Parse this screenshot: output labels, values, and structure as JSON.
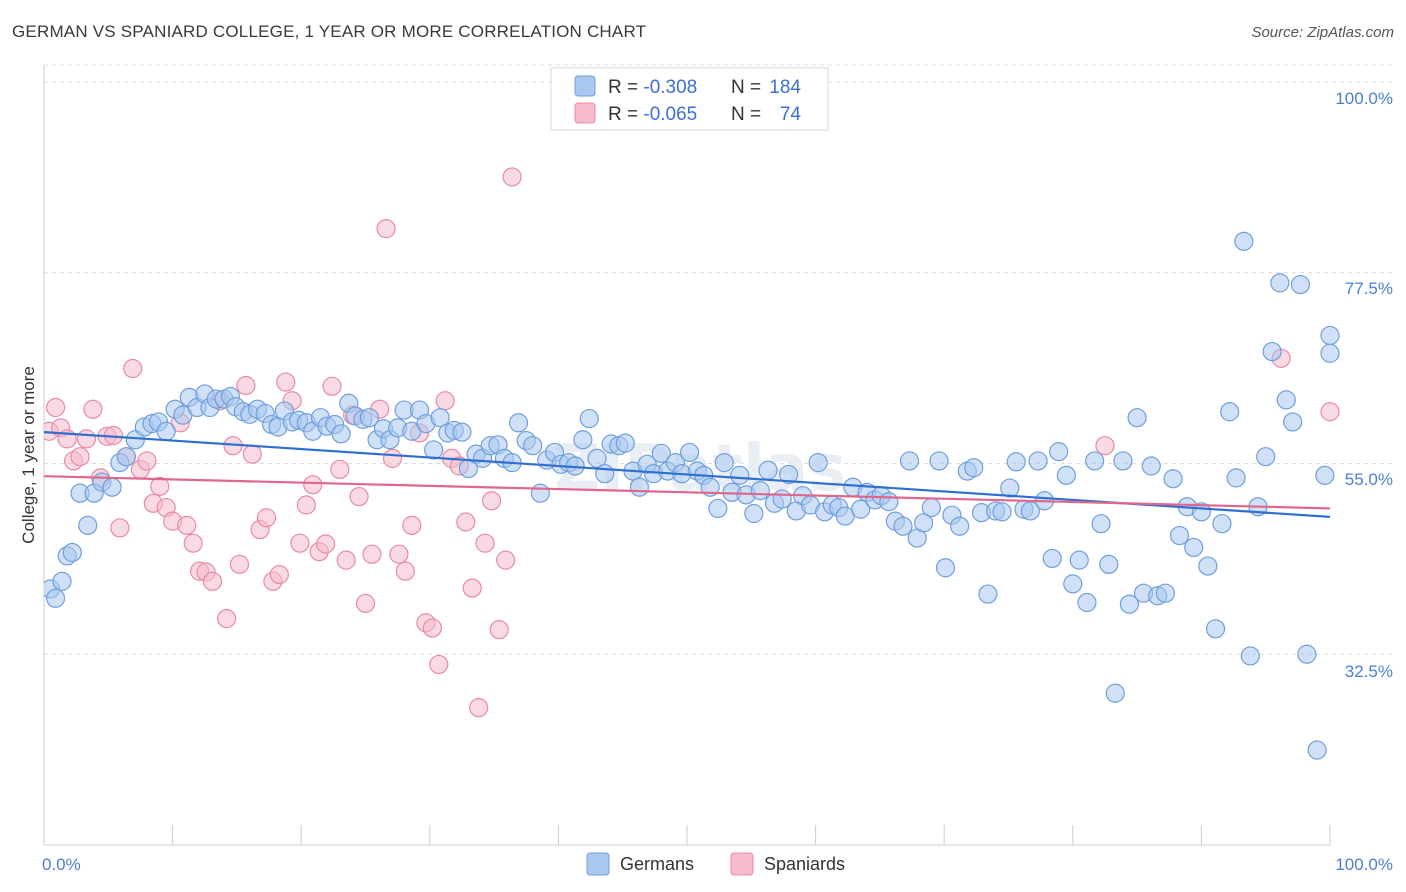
{
  "title": "GERMAN VS SPANIARD COLLEGE, 1 YEAR OR MORE CORRELATION CHART",
  "source": "Source: ZipAtlas.com",
  "colors": {
    "german_fill": "#a9c8f0",
    "german_stroke": "#6f9fdc",
    "german_line": "#2f6fcf",
    "spaniard_fill": "#f6bccb",
    "spaniard_stroke": "#e88aa5",
    "spaniard_line": "#e0668c",
    "tick_label": "#4a7fd0"
  },
  "legend": {
    "rows": [
      {
        "r_label": "R = ",
        "r_value": "-0.308",
        "n_label": "N = ",
        "n_value": "184"
      },
      {
        "r_label": "R = ",
        "r_value": "-0.065",
        "n_label": "N = ",
        "n_value": "74"
      }
    ]
  },
  "bottom_legend": [
    "Germans",
    "Spaniards"
  ],
  "chart_data": {
    "type": "scatter",
    "title": "GERMAN VS SPANIARD COLLEGE, 1 YEAR OR MORE CORRELATION CHART",
    "xlabel": "",
    "ylabel": "College, 1 year or more",
    "xlim": [
      0,
      100
    ],
    "ylim": [
      10,
      102
    ],
    "x_tick_labels": [
      "0.0%",
      "100.0%"
    ],
    "y_ticks": [
      32.5,
      55.0,
      77.5,
      100.0
    ],
    "y_tick_labels": [
      "32.5%",
      "55.0%",
      "77.5%",
      "100.0%"
    ],
    "grid": "horizontal dashed",
    "legend_position": "top-center",
    "series": [
      {
        "name": "Germans",
        "trend": {
          "x": [
            0,
            100
          ],
          "y": [
            58.7,
            48.7
          ]
        },
        "points": [
          [
            0.5,
            40.2
          ],
          [
            0.9,
            39.1
          ],
          [
            1.4,
            41.1
          ],
          [
            1.8,
            44.1
          ],
          [
            2.2,
            44.5
          ],
          [
            2.8,
            51.5
          ],
          [
            3.4,
            47.7
          ],
          [
            3.9,
            51.5
          ],
          [
            4.5,
            52.8
          ],
          [
            5.3,
            52.2
          ],
          [
            5.9,
            55.1
          ],
          [
            6.4,
            55.8
          ],
          [
            7.1,
            57.8
          ],
          [
            7.8,
            59.3
          ],
          [
            8.4,
            59.7
          ],
          [
            8.9,
            59.9
          ],
          [
            9.5,
            58.8
          ],
          [
            10.2,
            61.4
          ],
          [
            10.8,
            60.7
          ],
          [
            11.3,
            62.8
          ],
          [
            11.9,
            61.6
          ],
          [
            12.5,
            63.2
          ],
          [
            12.9,
            61.6
          ],
          [
            13.4,
            62.6
          ],
          [
            14.0,
            62.6
          ],
          [
            14.5,
            62.9
          ],
          [
            14.9,
            61.7
          ],
          [
            15.5,
            61.1
          ],
          [
            16.0,
            60.8
          ],
          [
            16.6,
            61.4
          ],
          [
            17.2,
            60.9
          ],
          [
            17.7,
            59.6
          ],
          [
            18.2,
            59.3
          ],
          [
            18.7,
            61.2
          ],
          [
            19.3,
            59.9
          ],
          [
            19.8,
            60.1
          ],
          [
            20.4,
            59.8
          ],
          [
            20.9,
            58.8
          ],
          [
            21.5,
            60.4
          ],
          [
            22.0,
            59.4
          ],
          [
            22.6,
            59.6
          ],
          [
            23.1,
            58.5
          ],
          [
            23.7,
            62.1
          ],
          [
            24.2,
            60.6
          ],
          [
            24.8,
            60.2
          ],
          [
            25.3,
            60.4
          ],
          [
            25.9,
            57.8
          ],
          [
            26.4,
            59.1
          ],
          [
            26.9,
            57.8
          ],
          [
            27.5,
            59.2
          ],
          [
            28.0,
            61.3
          ],
          [
            28.6,
            58.8
          ],
          [
            29.2,
            61.3
          ],
          [
            29.7,
            59.7
          ],
          [
            30.3,
            56.6
          ],
          [
            30.8,
            60.4
          ],
          [
            31.4,
            58.6
          ],
          [
            31.9,
            58.9
          ],
          [
            32.5,
            58.7
          ],
          [
            33.0,
            54.4
          ],
          [
            33.6,
            56.1
          ],
          [
            34.1,
            55.6
          ],
          [
            34.7,
            57.1
          ],
          [
            35.3,
            57.2
          ],
          [
            35.8,
            55.6
          ],
          [
            36.4,
            55.1
          ],
          [
            36.9,
            59.8
          ],
          [
            37.5,
            57.7
          ],
          [
            38.0,
            57.1
          ],
          [
            38.6,
            51.5
          ],
          [
            39.1,
            55.4
          ],
          [
            39.7,
            56.3
          ],
          [
            40.2,
            54.9
          ],
          [
            40.8,
            55.1
          ],
          [
            41.3,
            54.7
          ],
          [
            41.9,
            57.8
          ],
          [
            42.4,
            60.3
          ],
          [
            43.0,
            55.6
          ],
          [
            43.6,
            53.8
          ],
          [
            44.1,
            57.3
          ],
          [
            44.7,
            57.1
          ],
          [
            45.2,
            57.4
          ],
          [
            45.8,
            54.1
          ],
          [
            46.3,
            52.2
          ],
          [
            46.9,
            54.9
          ],
          [
            47.4,
            53.8
          ],
          [
            48.0,
            56.2
          ],
          [
            48.5,
            54.1
          ],
          [
            49.1,
            55.1
          ],
          [
            49.6,
            53.8
          ],
          [
            50.2,
            56.3
          ],
          [
            50.8,
            54.1
          ],
          [
            51.3,
            53.6
          ],
          [
            51.8,
            52.2
          ],
          [
            52.4,
            49.7
          ],
          [
            52.9,
            55.1
          ],
          [
            53.5,
            51.6
          ],
          [
            54.1,
            53.6
          ],
          [
            54.6,
            51.3
          ],
          [
            55.2,
            49.1
          ],
          [
            55.7,
            51.8
          ],
          [
            56.3,
            54.2
          ],
          [
            56.8,
            50.3
          ],
          [
            57.4,
            50.8
          ],
          [
            57.9,
            53.7
          ],
          [
            58.5,
            49.4
          ],
          [
            59.0,
            51.2
          ],
          [
            59.6,
            50.1
          ],
          [
            60.2,
            55.1
          ],
          [
            60.7,
            49.3
          ],
          [
            61.3,
            50.1
          ],
          [
            61.8,
            49.8
          ],
          [
            62.3,
            48.8
          ],
          [
            62.9,
            52.2
          ],
          [
            63.5,
            49.6
          ],
          [
            64.0,
            51.6
          ],
          [
            64.6,
            50.7
          ],
          [
            65.1,
            51.2
          ],
          [
            65.7,
            50.5
          ],
          [
            66.2,
            48.2
          ],
          [
            66.8,
            47.6
          ],
          [
            67.3,
            55.3
          ],
          [
            67.9,
            46.2
          ],
          [
            68.4,
            48.0
          ],
          [
            69.0,
            49.8
          ],
          [
            69.6,
            55.3
          ],
          [
            70.1,
            42.7
          ],
          [
            70.6,
            48.9
          ],
          [
            71.2,
            47.6
          ],
          [
            71.8,
            54.1
          ],
          [
            72.3,
            54.5
          ],
          [
            72.9,
            49.2
          ],
          [
            73.4,
            39.6
          ],
          [
            74.0,
            49.4
          ],
          [
            74.5,
            49.3
          ],
          [
            75.1,
            52.1
          ],
          [
            75.6,
            55.2
          ],
          [
            76.2,
            49.6
          ],
          [
            76.7,
            49.4
          ],
          [
            77.3,
            55.3
          ],
          [
            77.8,
            50.6
          ],
          [
            78.4,
            43.8
          ],
          [
            78.9,
            56.4
          ],
          [
            79.5,
            53.6
          ],
          [
            80.0,
            40.8
          ],
          [
            80.5,
            43.6
          ],
          [
            81.1,
            38.6
          ],
          [
            81.7,
            55.3
          ],
          [
            82.2,
            47.9
          ],
          [
            82.8,
            43.1
          ],
          [
            83.3,
            27.9
          ],
          [
            83.9,
            55.3
          ],
          [
            84.4,
            38.4
          ],
          [
            85.0,
            60.4
          ],
          [
            85.5,
            39.7
          ],
          [
            86.1,
            54.7
          ],
          [
            86.6,
            39.4
          ],
          [
            87.2,
            39.7
          ],
          [
            87.8,
            53.2
          ],
          [
            88.3,
            46.5
          ],
          [
            88.9,
            49.9
          ],
          [
            89.4,
            45.1
          ],
          [
            90.0,
            49.3
          ],
          [
            90.5,
            42.9
          ],
          [
            91.1,
            35.5
          ],
          [
            91.6,
            47.9
          ],
          [
            92.2,
            61.1
          ],
          [
            92.7,
            53.3
          ],
          [
            93.3,
            81.2
          ],
          [
            93.8,
            32.3
          ],
          [
            94.4,
            49.9
          ],
          [
            95.0,
            55.8
          ],
          [
            95.5,
            68.2
          ],
          [
            96.1,
            76.3
          ],
          [
            96.6,
            62.5
          ],
          [
            97.1,
            59.9
          ],
          [
            97.7,
            76.1
          ],
          [
            98.2,
            32.5
          ],
          [
            99.0,
            21.2
          ],
          [
            99.6,
            53.6
          ],
          [
            100.0,
            68.0
          ],
          [
            100.0,
            70.1
          ]
        ]
      },
      {
        "name": "Spaniards",
        "trend": {
          "x": [
            0,
            100
          ],
          "y": [
            53.5,
            49.7
          ]
        },
        "points": [
          [
            0.4,
            58.8
          ],
          [
            0.9,
            61.6
          ],
          [
            1.3,
            59.2
          ],
          [
            1.8,
            57.9
          ],
          [
            2.3,
            55.3
          ],
          [
            2.8,
            55.8
          ],
          [
            3.3,
            57.9
          ],
          [
            3.8,
            61.4
          ],
          [
            4.4,
            53.3
          ],
          [
            4.9,
            58.2
          ],
          [
            5.4,
            58.3
          ],
          [
            5.9,
            47.4
          ],
          [
            6.4,
            55.8
          ],
          [
            6.9,
            66.2
          ],
          [
            7.5,
            54.3
          ],
          [
            8.0,
            55.3
          ],
          [
            8.5,
            50.3
          ],
          [
            9.0,
            52.3
          ],
          [
            9.5,
            49.8
          ],
          [
            10.0,
            48.2
          ],
          [
            10.6,
            59.8
          ],
          [
            11.1,
            47.7
          ],
          [
            11.6,
            45.6
          ],
          [
            12.1,
            42.3
          ],
          [
            12.6,
            42.2
          ],
          [
            13.1,
            41.1
          ],
          [
            13.7,
            62.4
          ],
          [
            14.2,
            36.7
          ],
          [
            14.7,
            57.1
          ],
          [
            15.2,
            43.1
          ],
          [
            15.7,
            64.2
          ],
          [
            16.2,
            56.1
          ],
          [
            16.8,
            47.2
          ],
          [
            17.3,
            48.6
          ],
          [
            17.8,
            41.1
          ],
          [
            18.3,
            41.9
          ],
          [
            18.8,
            64.6
          ],
          [
            19.3,
            62.4
          ],
          [
            19.9,
            45.6
          ],
          [
            20.4,
            50.1
          ],
          [
            20.9,
            52.5
          ],
          [
            21.4,
            44.6
          ],
          [
            21.9,
            45.5
          ],
          [
            22.4,
            64.1
          ],
          [
            23.0,
            54.3
          ],
          [
            23.5,
            43.6
          ],
          [
            24.0,
            60.7
          ],
          [
            24.5,
            51.1
          ],
          [
            25.0,
            38.5
          ],
          [
            25.5,
            44.3
          ],
          [
            26.1,
            61.4
          ],
          [
            26.6,
            82.7
          ],
          [
            27.1,
            55.6
          ],
          [
            27.6,
            44.3
          ],
          [
            28.1,
            42.3
          ],
          [
            28.6,
            47.7
          ],
          [
            29.2,
            58.6
          ],
          [
            29.7,
            36.2
          ],
          [
            30.2,
            35.6
          ],
          [
            30.7,
            31.3
          ],
          [
            31.2,
            62.4
          ],
          [
            31.7,
            55.6
          ],
          [
            32.3,
            54.7
          ],
          [
            32.8,
            48.1
          ],
          [
            33.3,
            40.3
          ],
          [
            33.8,
            26.2
          ],
          [
            34.3,
            45.6
          ],
          [
            34.8,
            50.6
          ],
          [
            35.4,
            35.4
          ],
          [
            35.9,
            43.6
          ],
          [
            36.4,
            88.8
          ],
          [
            82.5,
            57.1
          ],
          [
            96.2,
            67.4
          ],
          [
            100.0,
            61.1
          ]
        ]
      }
    ]
  }
}
